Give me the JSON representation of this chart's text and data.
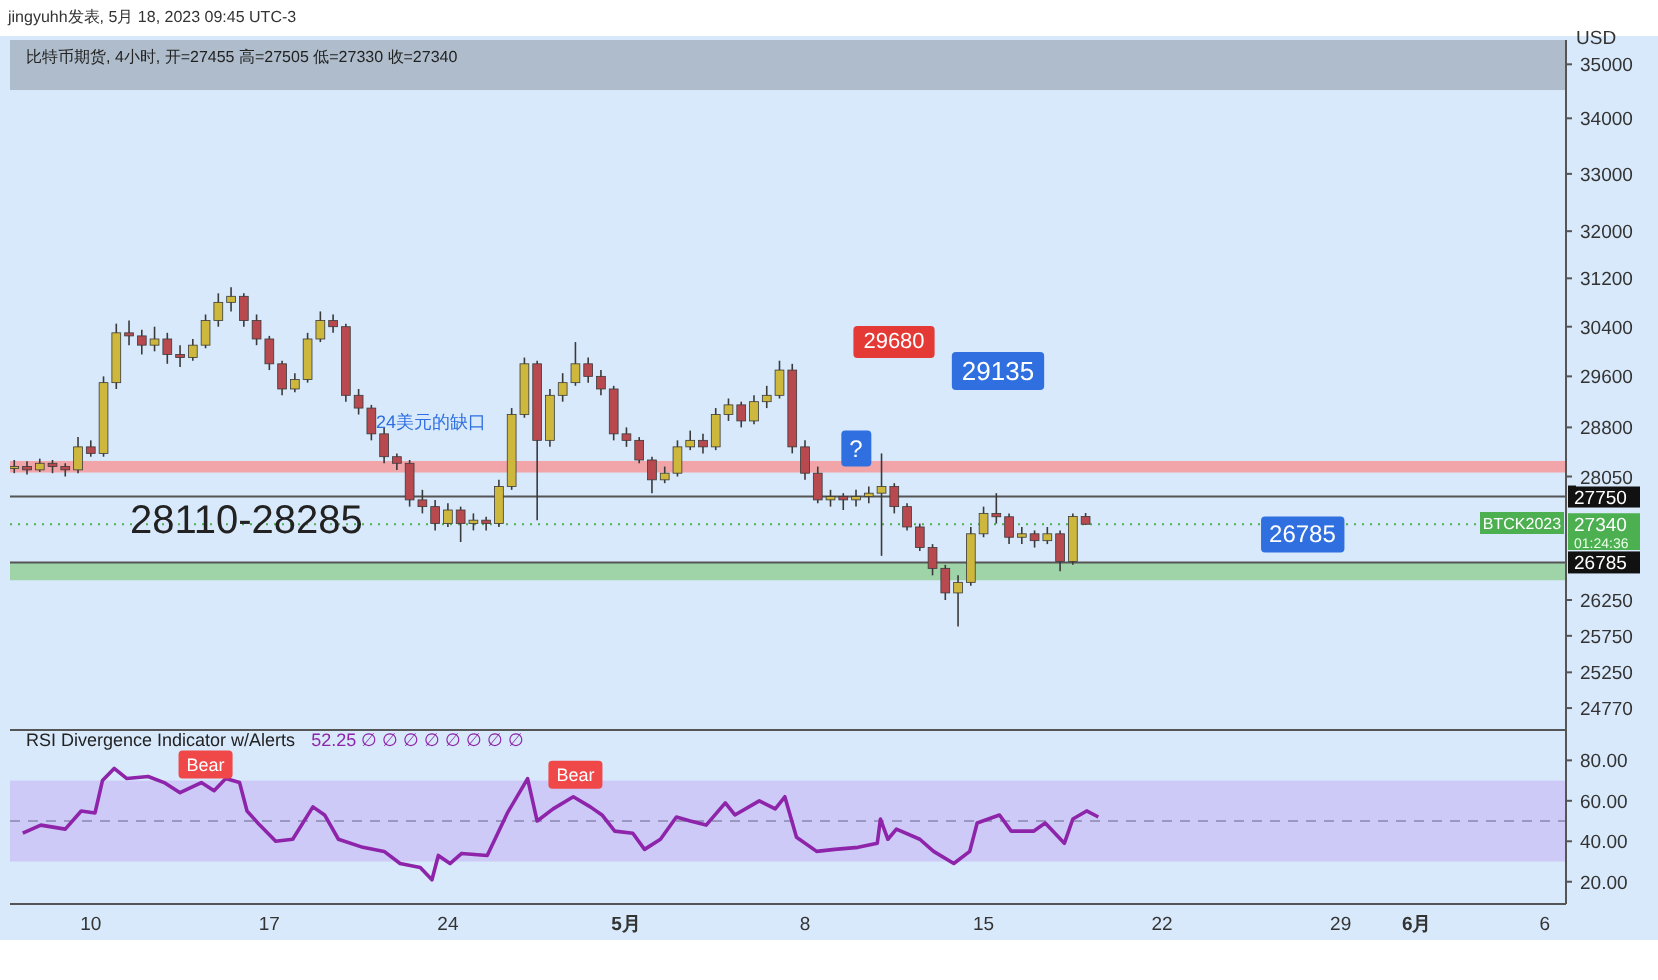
{
  "chart_data": [
    {
      "type": "candlestick",
      "title": "比特币期货, 4小时, 开=27455 高=27505 低=27330 收=27340",
      "ylabel": "USD",
      "log": "y",
      "tick_labels": "y",
      "annotations": [
        "jingyuhh发表, 5月 18, 2023 09:45 UTC-3",
        "BTCK2023",
        "01:24:36",
        {
          "text": "26785",
          "x": "2023-05-27T12:00",
          "y": 26785
        },
        {
          "text": "?",
          "x": "2023-05-10T00:00",
          "y": 28050
        },
        "24美元的缺口",
        "29680",
        "29135"
      ],
      "xlim": [
        "2023-04-06T20:00",
        "2023-06-06T20:00"
      ],
      "ylim": [
        24480,
        35460
      ],
      "yticks": [
        24770,
        25250,
        25750,
        26250,
        28050,
        28800,
        29600,
        30400,
        31200,
        32000,
        33000,
        34000,
        35000
      ],
      "ref_lines": [
        {
          "axis": "y",
          "value": 27750,
          "label": "27750",
          "color": "#555555"
        },
        {
          "axis": "y",
          "value": 26785,
          "label": "26785",
          "color": "#555555"
        },
        {
          "axis": "y",
          "value": 27340,
          "label": "27340",
          "color": "#4caf50",
          "line_style": "dotted"
        }
      ],
      "bands": [
        {
          "axis": "y",
          "from": 28110,
          "to": 28285,
          "label": "28110-28285",
          "color": "#f2a5a8"
        },
        {
          "axis": "y",
          "from": 34520,
          "to": 35460,
          "color": "#aebccb"
        },
        {
          "axis": "y",
          "from": 26530,
          "to": 26785,
          "color": "#9fd3a8"
        }
      ],
      "x": [
        "2023-04-07T00:00",
        "2023-04-07T12:00",
        "2023-04-08T00:00",
        "2023-04-08T12:00",
        "2023-04-09T00:00",
        "2023-04-09T12:00",
        "2023-04-10T00:00",
        "2023-04-10T12:00",
        "2023-04-11T00:00",
        "2023-04-11T12:00",
        "2023-04-12T00:00",
        "2023-04-12T12:00",
        "2023-04-13T00:00",
        "2023-04-13T12:00",
        "2023-04-14T00:00",
        "2023-04-14T12:00",
        "2023-04-15T00:00",
        "2023-04-15T12:00",
        "2023-04-16T00:00",
        "2023-04-16T12:00",
        "2023-04-17T00:00",
        "2023-04-17T12:00",
        "2023-04-18T00:00",
        "2023-04-18T12:00",
        "2023-04-19T00:00",
        "2023-04-19T12:00",
        "2023-04-20T00:00",
        "2023-04-20T12:00",
        "2023-04-21T00:00",
        "2023-04-21T12:00",
        "2023-04-22T00:00",
        "2023-04-22T12:00",
        "2023-04-23T00:00",
        "2023-04-23T12:00",
        "2023-04-24T00:00",
        "2023-04-24T12:00",
        "2023-04-25T00:00",
        "2023-04-25T12:00",
        "2023-04-26T00:00",
        "2023-04-26T12:00",
        "2023-04-27T00:00",
        "2023-04-27T12:00",
        "2023-04-28T00:00",
        "2023-04-28T12:00",
        "2023-04-29T00:00",
        "2023-04-29T12:00",
        "2023-04-30T00:00",
        "2023-04-30T12:00",
        "2023-05-01T00:00",
        "2023-05-01T12:00",
        "2023-05-02T00:00",
        "2023-05-02T12:00",
        "2023-05-03T00:00",
        "2023-05-03T12:00",
        "2023-05-04T00:00",
        "2023-05-04T12:00",
        "2023-05-05T00:00",
        "2023-05-05T12:00",
        "2023-05-06T00:00",
        "2023-05-06T12:00",
        "2023-05-07T00:00",
        "2023-05-07T12:00",
        "2023-05-08T00:00",
        "2023-05-08T12:00",
        "2023-05-09T00:00",
        "2023-05-09T12:00",
        "2023-05-10T00:00",
        "2023-05-10T12:00",
        "2023-05-11T00:00",
        "2023-05-11T12:00",
        "2023-05-12T00:00",
        "2023-05-12T12:00",
        "2023-05-13T00:00",
        "2023-05-13T12:00",
        "2023-05-14T00:00",
        "2023-05-14T12:00",
        "2023-05-15T00:00",
        "2023-05-15T12:00",
        "2023-05-16T00:00",
        "2023-05-16T12:00",
        "2023-05-17T00:00",
        "2023-05-17T12:00",
        "2023-05-18T00:00",
        "2023-05-18T12:00",
        "2023-05-19T00:00"
      ],
      "ohlc": [
        [
          28180,
          28300,
          28100,
          28200
        ],
        [
          28200,
          28280,
          28080,
          28150
        ],
        [
          28150,
          28320,
          28120,
          28250
        ],
        [
          28250,
          28300,
          28100,
          28200
        ],
        [
          28200,
          28250,
          28050,
          28150
        ],
        [
          28150,
          28650,
          28100,
          28500
        ],
        [
          28500,
          28600,
          28350,
          28400
        ],
        [
          28400,
          29600,
          28350,
          29500
        ],
        [
          29500,
          30450,
          29400,
          30300
        ],
        [
          30300,
          30500,
          30100,
          30250
        ],
        [
          30250,
          30350,
          29950,
          30100
        ],
        [
          30100,
          30400,
          30000,
          30200
        ],
        [
          30200,
          30300,
          29800,
          29950
        ],
        [
          29950,
          30100,
          29750,
          29900
        ],
        [
          29900,
          30200,
          29850,
          30100
        ],
        [
          30100,
          30600,
          30050,
          30500
        ],
        [
          30500,
          30950,
          30400,
          30800
        ],
        [
          30800,
          31050,
          30650,
          30900
        ],
        [
          30900,
          30950,
          30400,
          30500
        ],
        [
          30500,
          30600,
          30100,
          30200
        ],
        [
          30200,
          30250,
          29700,
          29800
        ],
        [
          29800,
          29850,
          29300,
          29400
        ],
        [
          29400,
          29650,
          29350,
          29550
        ],
        [
          29550,
          30300,
          29500,
          30200
        ],
        [
          30200,
          30650,
          30150,
          30500
        ],
        [
          30500,
          30600,
          30300,
          30400
        ],
        [
          30400,
          30450,
          29200,
          29300
        ],
        [
          29300,
          29400,
          29000,
          29100
        ],
        [
          29100,
          29150,
          28600,
          28700
        ],
        [
          28700,
          28800,
          28250,
          28350
        ],
        [
          28350,
          28400,
          28150,
          28250
        ],
        [
          28250,
          28300,
          27600,
          27700
        ],
        [
          27700,
          27850,
          27500,
          27600
        ],
        [
          27600,
          27700,
          27250,
          27350
        ],
        [
          27350,
          27650,
          27300,
          27550
        ],
        [
          27550,
          27600,
          27080,
          27350
        ],
        [
          27350,
          27500,
          27250,
          27400
        ],
        [
          27400,
          27450,
          27250,
          27350
        ],
        [
          27350,
          28000,
          27300,
          27900
        ],
        [
          27900,
          29100,
          27850,
          29000
        ],
        [
          29000,
          29900,
          28950,
          29800
        ],
        [
          29800,
          29850,
          27400,
          28600
        ],
        [
          28600,
          29400,
          28500,
          29300
        ],
        [
          29300,
          29650,
          29200,
          29500
        ],
        [
          29500,
          30150,
          29450,
          29800
        ],
        [
          29800,
          29900,
          29500,
          29600
        ],
        [
          29600,
          29700,
          29300,
          29400
        ],
        [
          29400,
          29450,
          28600,
          28700
        ],
        [
          28700,
          28800,
          28500,
          28600
        ],
        [
          28600,
          28650,
          28250,
          28300
        ],
        [
          28300,
          28350,
          27800,
          28000
        ],
        [
          28000,
          28200,
          27950,
          28100
        ],
        [
          28100,
          28600,
          28050,
          28500
        ],
        [
          28500,
          28750,
          28450,
          28600
        ],
        [
          28600,
          28700,
          28400,
          28500
        ],
        [
          28500,
          29100,
          28450,
          29000
        ],
        [
          29000,
          29250,
          28900,
          29150
        ],
        [
          29150,
          29200,
          28800,
          28900
        ],
        [
          28900,
          29300,
          28850,
          29200
        ],
        [
          29200,
          29450,
          29100,
          29300
        ],
        [
          29300,
          29850,
          29250,
          29700
        ],
        [
          29700,
          29800,
          28400,
          28500
        ],
        [
          28500,
          28600,
          28000,
          28100
        ],
        [
          28100,
          28200,
          27650,
          27700
        ],
        [
          27700,
          27850,
          27600,
          27750
        ],
        [
          27750,
          27800,
          27550,
          27700
        ],
        [
          27700,
          27850,
          27600,
          27750
        ],
        [
          27750,
          27900,
          27650,
          27800
        ],
        [
          27800,
          28400,
          26880,
          27900
        ],
        [
          27900,
          27950,
          27500,
          27600
        ],
        [
          27600,
          27650,
          27250,
          27300
        ],
        [
          27300,
          27350,
          26950,
          27000
        ],
        [
          27000,
          27050,
          26600,
          26700
        ],
        [
          26700,
          26750,
          26250,
          26350
        ],
        [
          26350,
          26600,
          25880,
          26500
        ],
        [
          26500,
          27300,
          26450,
          27200
        ],
        [
          27200,
          27600,
          27150,
          27500
        ],
        [
          27500,
          27800,
          27350,
          27450
        ],
        [
          27450,
          27500,
          27050,
          27150
        ],
        [
          27150,
          27300,
          27050,
          27200
        ],
        [
          27200,
          27250,
          27000,
          27100
        ],
        [
          27100,
          27300,
          27050,
          27200
        ],
        [
          27200,
          27250,
          26660,
          26800
        ],
        [
          26800,
          27500,
          26750,
          27455
        ],
        [
          27455,
          27505,
          27330,
          27340
        ]
      ]
    },
    {
      "type": "line",
      "title": "RSI Divergence Indicator w/Alerts",
      "subtitle": "52.25 ∅ ∅ ∅ ∅ ∅ ∅ ∅ ∅",
      "annotations": [
        {
          "text": "Bear",
          "x": "2023-04-14T12:00",
          "y": 71
        },
        {
          "text": "Bear",
          "x": "2023-04-29T00:00",
          "y": 66
        }
      ],
      "xlim": [
        "2023-04-06T20:00",
        "2023-06-06T20:00"
      ],
      "xticks": [
        {
          "value": "2023-04-10",
          "label": "10"
        },
        {
          "value": "2023-04-17",
          "label": "17"
        },
        {
          "value": "2023-04-24",
          "label": "24"
        },
        {
          "value": "2023-05-01",
          "label": "5月"
        },
        {
          "value": "2023-05-08",
          "label": "8"
        },
        {
          "value": "2023-05-15",
          "label": "15"
        },
        {
          "value": "2023-05-22",
          "label": "22"
        },
        {
          "value": "2023-05-29",
          "label": "29"
        },
        {
          "value": "2023-06-01",
          "label": "6月"
        },
        {
          "value": "2023-06-06",
          "label": "6"
        }
      ],
      "ylim": [
        9,
        95
      ],
      "yticks": [
        {
          "value": 20,
          "label": "20.00"
        },
        {
          "value": 40,
          "label": "40.00"
        },
        {
          "value": 60,
          "label": "60.00"
        },
        {
          "value": 80,
          "label": "80.00"
        }
      ],
      "bands": [
        {
          "axis": "y",
          "from": 30,
          "to": 70,
          "color": "#cdcaf7"
        }
      ],
      "ref_lines": [
        {
          "axis": "y",
          "value": 50,
          "color": "#9a98c0",
          "line_style": "dashed"
        }
      ],
      "series": [
        {
          "color": "#8e24aa",
          "x": [
            "2023-04-07T08:00",
            "2023-04-08T01:00",
            "2023-04-09T00:00",
            "2023-04-09T15:00",
            "2023-04-10T04:00",
            "2023-04-10T11:00",
            "2023-04-10T22:00",
            "2023-04-11T10:00",
            "2023-04-12T06:00",
            "2023-04-12T21:00",
            "2023-04-13T12:00",
            "2023-04-14T08:00",
            "2023-04-14T20:00",
            "2023-04-15T07:00",
            "2023-04-15T20:00",
            "2023-04-16T03:00",
            "2023-04-16T15:00",
            "2023-04-17T06:00",
            "2023-04-17T22:00",
            "2023-04-18T17:00",
            "2023-04-19T04:00",
            "2023-04-19T17:00",
            "2023-04-20T16:00",
            "2023-04-21T12:00",
            "2023-04-22T03:00",
            "2023-04-22T22:00",
            "2023-04-23T09:00",
            "2023-04-23T15:00",
            "2023-04-24T02:00",
            "2023-04-24T13:00",
            "2023-04-25T13:00",
            "2023-04-26T08:00",
            "2023-04-27T03:00",
            "2023-04-27T12:00",
            "2023-04-28T03:00",
            "2023-04-28T22:00",
            "2023-04-29T14:00",
            "2023-04-30T01:00",
            "2023-04-30T13:00",
            "2023-05-01T06:00",
            "2023-05-01T17:00",
            "2023-05-02T08:00",
            "2023-05-02T23:00",
            "2023-05-03T12:00",
            "2023-05-04T03:00",
            "2023-05-04T21:00",
            "2023-05-05T06:00",
            "2023-05-06T05:00",
            "2023-05-06T20:00",
            "2023-05-07T05:00",
            "2023-05-07T16:00",
            "2023-05-08T11:00",
            "2023-05-09T04:00",
            "2023-05-10T02:00",
            "2023-05-10T20:00",
            "2023-05-10T23:00",
            "2023-05-11T06:00",
            "2023-05-11T14:00",
            "2023-05-12T12:00",
            "2023-05-13T01:00",
            "2023-05-13T20:00",
            "2023-05-14T11:00",
            "2023-05-14T18:00",
            "2023-05-15T15:00",
            "2023-05-16T02:00",
            "2023-05-16T23:00",
            "2023-05-17T10:00",
            "2023-05-18T04:00",
            "2023-05-18T12:00",
            "2023-05-19T01:00",
            "2023-05-19T12:00"
          ],
          "values": [
            44,
            48,
            46,
            55,
            54,
            70,
            76,
            71,
            72,
            69,
            64,
            69,
            65,
            71,
            69,
            55,
            48,
            40,
            41,
            57,
            53,
            41,
            37,
            35,
            29,
            27,
            21,
            33,
            29,
            34,
            33,
            54,
            71,
            50,
            56,
            62,
            57,
            53,
            45,
            44,
            36,
            41,
            52,
            50,
            48,
            59,
            53,
            60,
            56,
            62,
            42,
            35,
            36,
            37,
            39,
            51,
            41,
            46,
            41,
            35,
            29,
            35,
            49,
            53,
            45,
            45,
            49,
            39,
            51,
            55,
            52
          ]
        }
      ]
    }
  ]
}
